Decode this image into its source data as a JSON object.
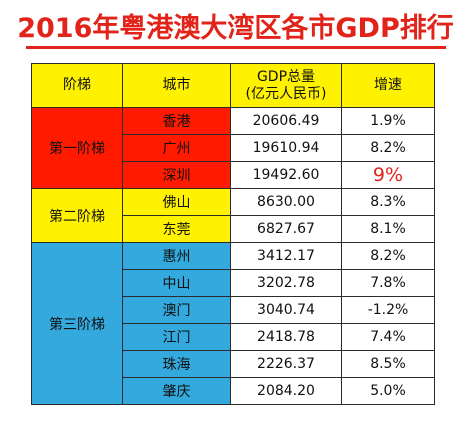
{
  "title": "2016年粤港澳大湾区各市GDP排行",
  "table": {
    "headers": {
      "tier": "阶梯",
      "city": "城市",
      "gdp_line1": "GDP总量",
      "gdp_line2": "(亿元人民币)",
      "growth": "增速"
    },
    "tiers": [
      {
        "label": "第一阶梯",
        "color": "#ff1a00"
      },
      {
        "label": "第二阶梯",
        "color": "#fff200"
      },
      {
        "label": "第三阶梯",
        "color": "#33a9dd"
      }
    ],
    "rows": [
      {
        "city": "香港",
        "gdp": "20606.49",
        "growth": "1.9%"
      },
      {
        "city": "广州",
        "gdp": "19610.94",
        "growth": "8.2%"
      },
      {
        "city": "深圳",
        "gdp": "19492.60",
        "growth": "9%",
        "highlight": true
      },
      {
        "city": "佛山",
        "gdp": "8630.00",
        "growth": "8.3%"
      },
      {
        "city": "东莞",
        "gdp": "6827.67",
        "growth": "8.1%"
      },
      {
        "city": "惠州",
        "gdp": "3412.17",
        "growth": "8.2%"
      },
      {
        "city": "中山",
        "gdp": "3202.78",
        "growth": "7.8%"
      },
      {
        "city": "澳门",
        "gdp": "3040.74",
        "growth": "-1.2%"
      },
      {
        "city": "江门",
        "gdp": "2418.78",
        "growth": "7.4%"
      },
      {
        "city": "珠海",
        "gdp": "2226.37",
        "growth": "8.5%"
      },
      {
        "city": "肇庆",
        "gdp": "2084.20",
        "growth": "5.0%"
      }
    ]
  },
  "chart_data": {
    "type": "table",
    "title": "2016年粤港澳大湾区各市GDP排行",
    "columns": [
      "阶梯",
      "城市",
      "GDP总量(亿元人民币)",
      "增速"
    ],
    "rows": [
      [
        "第一阶梯",
        "香港",
        20606.49,
        "1.9%"
      ],
      [
        "第一阶梯",
        "广州",
        19610.94,
        "8.2%"
      ],
      [
        "第一阶梯",
        "深圳",
        19492.6,
        "9%"
      ],
      [
        "第二阶梯",
        "佛山",
        8630.0,
        "8.3%"
      ],
      [
        "第二阶梯",
        "东莞",
        6827.67,
        "8.1%"
      ],
      [
        "第三阶梯",
        "惠州",
        3412.17,
        "8.2%"
      ],
      [
        "第三阶梯",
        "中山",
        3202.78,
        "7.8%"
      ],
      [
        "第三阶梯",
        "澳门",
        3040.74,
        "-1.2%"
      ],
      [
        "第三阶梯",
        "江门",
        2418.78,
        "7.4%"
      ],
      [
        "第三阶梯",
        "珠海",
        2226.37,
        "8.5%"
      ],
      [
        "第三阶梯",
        "肇庆",
        2084.2,
        "5.0%"
      ]
    ]
  }
}
